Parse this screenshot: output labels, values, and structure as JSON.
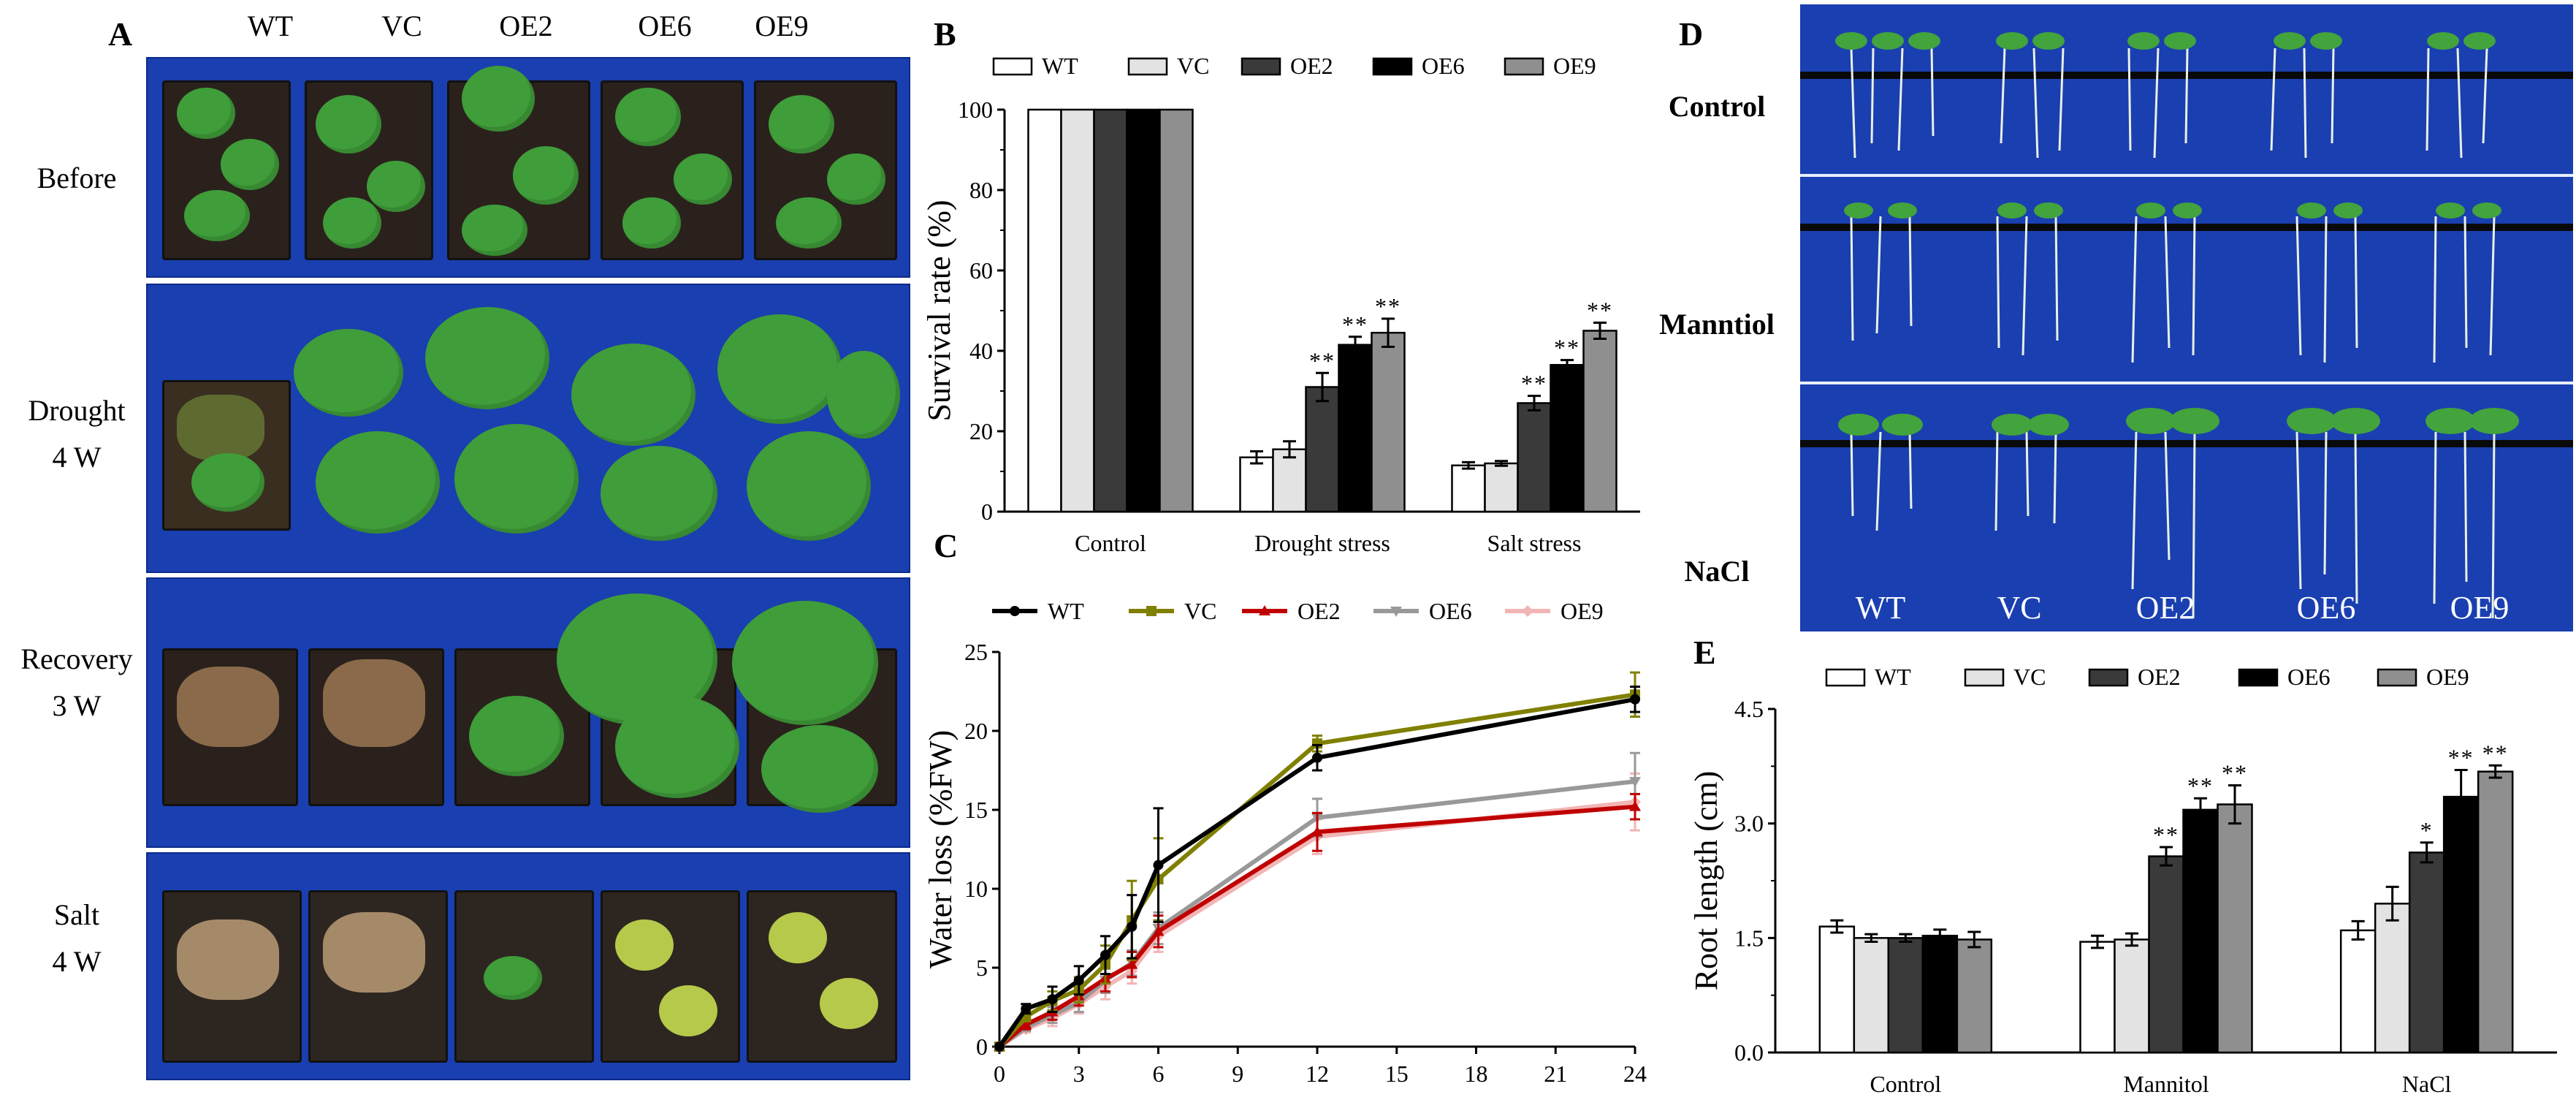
{
  "panel_letters": {
    "a": "A",
    "b": "B",
    "c": "C",
    "d": "D",
    "e": "E"
  },
  "panel_a": {
    "genotypes": [
      "WT",
      "VC",
      "OE2",
      "OE6",
      "OE9"
    ],
    "rows": [
      {
        "line1": "Before",
        "line2": ""
      },
      {
        "line1": "Drought",
        "line2": "4 W"
      },
      {
        "line1": "Recovery",
        "line2": "3 W"
      },
      {
        "line1": "Salt",
        "line2": "4 W"
      }
    ]
  },
  "panel_d": {
    "rows": [
      "Control",
      "Manntiol",
      "NaCl"
    ],
    "genotypes": [
      "WT",
      "VC",
      "OE2",
      "OE6",
      "OE9"
    ]
  },
  "colors": {
    "WT_bar": "#ffffff",
    "VC_bar": "#e3e3e3",
    "OE2_bar": "#3a3a3a",
    "OE6_bar": "#000000",
    "OE9_bar": "#8f8f8f",
    "WT_line": "#000000",
    "VC_line": "#808000",
    "OE2_line": "#c00000",
    "OE6_line": "#999999",
    "OE9_line": "#f2b5b5"
  },
  "chart_data": [
    {
      "id": "B",
      "type": "bar",
      "ylabel": "Survival rate (%)",
      "xlabel": "",
      "ylim": [
        0,
        100
      ],
      "yticks": [
        "0",
        "20",
        "40",
        "60",
        "80",
        "100"
      ],
      "categories": [
        "Control",
        "Drought stress",
        "Salt stress"
      ],
      "series": [
        {
          "name": "WT",
          "values": [
            100,
            13.5,
            11.5
          ],
          "errors": [
            0,
            1.5,
            0.8
          ]
        },
        {
          "name": "VC",
          "values": [
            100,
            15.5,
            12
          ],
          "errors": [
            0,
            2,
            0.6
          ]
        },
        {
          "name": "OE2",
          "values": [
            100,
            31,
            27
          ],
          "errors": [
            0,
            3.5,
            1.8
          ]
        },
        {
          "name": "OE6",
          "values": [
            100,
            41.5,
            36.5
          ],
          "errors": [
            0,
            2,
            1.2
          ]
        },
        {
          "name": "OE9",
          "values": [
            100,
            44.5,
            45
          ],
          "errors": [
            0,
            3.5,
            2
          ]
        }
      ],
      "significance": [
        [
          [
            "",
            "",
            "",
            "",
            ""
          ],
          [
            "",
            "",
            "**",
            "**",
            "**"
          ],
          [
            "",
            "",
            "**",
            "**",
            "**"
          ]
        ]
      ]
    },
    {
      "id": "C",
      "type": "line",
      "ylabel": "Water loss (%FW)",
      "xlabel": "",
      "ylim": [
        0,
        25
      ],
      "xlim": [
        0,
        24
      ],
      "yticks": [
        "0",
        "5",
        "10",
        "15",
        "20",
        "25"
      ],
      "xticks": [
        "0",
        "3",
        "6",
        "9",
        "12",
        "15",
        "18",
        "21",
        "24"
      ],
      "x": [
        0,
        1,
        2,
        3,
        4,
        5,
        6,
        12,
        24
      ],
      "series": [
        {
          "name": "WT",
          "values": [
            0,
            2.4,
            3.0,
            4.2,
            5.8,
            7.6,
            11.5,
            18.3,
            22.0
          ],
          "errors": [
            0,
            0.3,
            0.8,
            0.9,
            1.2,
            2.0,
            3.6,
            0.8,
            0.8
          ]
        },
        {
          "name": "VC",
          "values": [
            0,
            1.9,
            2.9,
            3.6,
            5.2,
            8.0,
            10.6,
            19.2,
            22.3
          ],
          "errors": [
            0,
            0.3,
            0.6,
            0.8,
            1.2,
            2.5,
            2.6,
            0.5,
            1.4
          ]
        },
        {
          "name": "OE2",
          "values": [
            0,
            1.4,
            2.2,
            3.2,
            4.3,
            5.2,
            7.3,
            13.6,
            15.2
          ],
          "errors": [
            0,
            0.3,
            0.5,
            0.6,
            0.8,
            0.8,
            1.0,
            1.2,
            0.8
          ]
        },
        {
          "name": "OE6",
          "values": [
            0,
            1.2,
            2.0,
            2.8,
            4.2,
            5.3,
            7.5,
            14.5,
            16.8
          ],
          "errors": [
            0,
            0.2,
            0.5,
            0.6,
            0.8,
            0.8,
            1.0,
            1.2,
            1.8
          ]
        },
        {
          "name": "OE9",
          "values": [
            0,
            1.1,
            1.8,
            2.7,
            3.8,
            4.8,
            7.0,
            13.3,
            15.5
          ],
          "errors": [
            0,
            0.2,
            0.5,
            0.6,
            0.8,
            0.8,
            1.0,
            1.1,
            1.8
          ]
        }
      ]
    },
    {
      "id": "E",
      "type": "bar",
      "ylabel": "Root length (cm)",
      "xlabel": "",
      "ylim": [
        0,
        4.5
      ],
      "yticks": [
        "0.0",
        "1.5",
        "3.0",
        "4.5"
      ],
      "categories": [
        "Control",
        "Mannitol",
        "NaCl"
      ],
      "series": [
        {
          "name": "WT",
          "values": [
            1.65,
            1.45,
            1.6
          ],
          "errors": [
            0.08,
            0.08,
            0.12
          ]
        },
        {
          "name": "VC",
          "values": [
            1.5,
            1.48,
            1.95
          ],
          "errors": [
            0.05,
            0.08,
            0.22
          ]
        },
        {
          "name": "OE2",
          "values": [
            1.5,
            2.57,
            2.62
          ],
          "errors": [
            0.05,
            0.12,
            0.13
          ]
        },
        {
          "name": "OE6",
          "values": [
            1.53,
            3.18,
            3.35
          ],
          "errors": [
            0.08,
            0.15,
            0.35
          ]
        },
        {
          "name": "OE9",
          "values": [
            1.48,
            3.25,
            3.68
          ],
          "errors": [
            0.1,
            0.25,
            0.08
          ]
        }
      ],
      "significance": [
        [
          [
            "",
            "",
            "",
            "",
            ""
          ],
          [
            "",
            "",
            "**",
            "**",
            "**"
          ],
          [
            "",
            "",
            "*",
            "**",
            "**"
          ]
        ]
      ]
    }
  ]
}
